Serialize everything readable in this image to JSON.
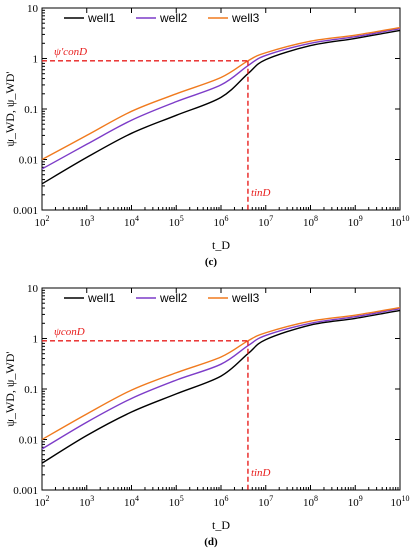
{
  "chart_data": [
    {
      "panel_label": "(c)",
      "type": "line",
      "xscale": "log",
      "yscale": "log",
      "xlim": [
        100,
        10000000000
      ],
      "ylim": [
        0.001,
        10
      ],
      "xlabel": "t_D",
      "ylabel": "ψ_WD, ψ_WD'",
      "legend_placement": "top-left",
      "x_ticks": [
        "10^2",
        "10^3",
        "10^4",
        "10^5",
        "10^6",
        "10^7",
        "10^8",
        "10^9",
        "10^10"
      ],
      "y_ticks": [
        "0.001",
        "0.01",
        "0.1",
        "1",
        "10"
      ],
      "series": [
        {
          "name": "well1",
          "color": "#000000",
          "x": [
            100,
            1000,
            10000,
            100000,
            1000000,
            4000000,
            10000000,
            100000000,
            1000000000,
            10000000000
          ],
          "y": [
            0.0033,
            0.011,
            0.033,
            0.075,
            0.17,
            0.5,
            0.95,
            1.8,
            2.5,
            3.6
          ]
        },
        {
          "name": "well2",
          "color": "#7d3cc8",
          "x": [
            100,
            1000,
            10000,
            100000,
            1000000,
            4000000,
            10000000,
            100000000,
            1000000000,
            10000000000
          ],
          "y": [
            0.0065,
            0.02,
            0.06,
            0.14,
            0.3,
            0.72,
            1.15,
            2.0,
            2.7,
            3.9
          ]
        },
        {
          "name": "well3",
          "color": "#f07a1e",
          "x": [
            100,
            1000,
            10000,
            100000,
            1000000,
            4000000,
            10000000,
            100000000,
            1000000000,
            10000000000
          ],
          "y": [
            0.01,
            0.03,
            0.09,
            0.2,
            0.42,
            0.9,
            1.3,
            2.2,
            2.9,
            4.1
          ]
        }
      ],
      "annotations": {
        "psi_label": "ψ'conD",
        "t_label": "tinD",
        "psi_value": 0.9,
        "t_value": 4000000,
        "line_color": "#e8201f"
      }
    },
    {
      "panel_label": "(d)",
      "type": "line",
      "xscale": "log",
      "yscale": "log",
      "xlim": [
        100,
        10000000000
      ],
      "ylim": [
        0.001,
        10
      ],
      "xlabel": "t_D",
      "ylabel": "ψ_WD, ψ_WD'",
      "legend_placement": "top-left",
      "x_ticks": [
        "10^2",
        "10^3",
        "10^4",
        "10^5",
        "10^6",
        "10^7",
        "10^8",
        "10^9",
        "10^10"
      ],
      "y_ticks": [
        "0.001",
        "0.01",
        "0.1",
        "1",
        "10"
      ],
      "series": [
        {
          "name": "well1",
          "color": "#000000",
          "x": [
            100,
            1000,
            10000,
            100000,
            1000000,
            4000000,
            10000000,
            100000000,
            1000000000,
            10000000000
          ],
          "y": [
            0.0034,
            0.012,
            0.035,
            0.08,
            0.18,
            0.5,
            0.95,
            1.85,
            2.5,
            3.6
          ]
        },
        {
          "name": "well2",
          "color": "#7d3cc8",
          "x": [
            100,
            1000,
            10000,
            100000,
            1000000,
            4000000,
            10000000,
            100000000,
            1000000000,
            10000000000
          ],
          "y": [
            0.0065,
            0.022,
            0.065,
            0.15,
            0.31,
            0.72,
            1.15,
            2.0,
            2.7,
            3.9
          ]
        },
        {
          "name": "well3",
          "color": "#f07a1e",
          "x": [
            100,
            1000,
            10000,
            100000,
            1000000,
            4000000,
            10000000,
            100000000,
            1000000000,
            10000000000
          ],
          "y": [
            0.01,
            0.032,
            0.095,
            0.21,
            0.43,
            0.9,
            1.3,
            2.2,
            2.9,
            4.1
          ]
        }
      ],
      "annotations": {
        "psi_label": "ψconD",
        "t_label": "tinD",
        "psi_value": 0.9,
        "t_value": 4000000,
        "line_color": "#e8201f"
      }
    }
  ]
}
